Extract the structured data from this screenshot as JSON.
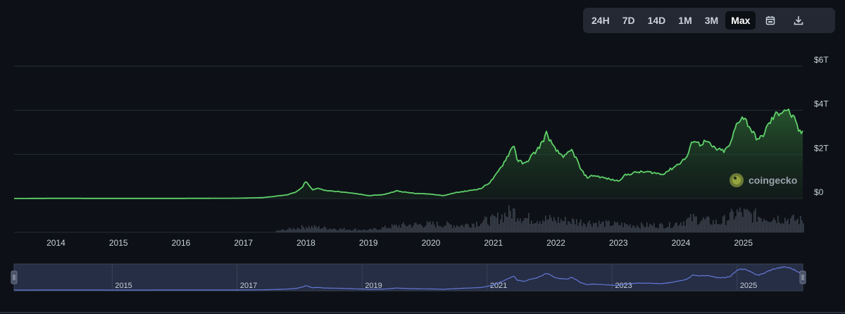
{
  "range_selector": {
    "buttons": [
      "24H",
      "7D",
      "14D",
      "1M",
      "3M",
      "Max"
    ],
    "active": "Max",
    "calendar_icon": "calendar-icon",
    "download_icon": "download-icon"
  },
  "watermark": {
    "text": "coingecko",
    "icon": "gecko-logo-icon"
  },
  "colors": {
    "background": "#0d1117",
    "line": "#5fd16a",
    "volume": "#3a404b",
    "navigator_fill": "#262e45",
    "navigator_line": "#6378d8"
  },
  "chart_data": {
    "type": "area",
    "y_tick_labels": [
      "$0",
      "$2T",
      "$4T",
      "$6T"
    ],
    "y_ticks": [
      0,
      2,
      4,
      6
    ],
    "ylim": [
      -1.5,
      6.2
    ],
    "y_unit": "trillion USD",
    "x_tick_labels": [
      "2014",
      "2015",
      "2016",
      "2017",
      "2018",
      "2019",
      "2020",
      "2021",
      "2022",
      "2023",
      "2024",
      "2025"
    ],
    "xlim": [
      2013.33,
      2025.95
    ],
    "grid": true,
    "series": [
      {
        "values": [
          [
            2013.33,
            0.002
          ],
          [
            2014.0,
            0.01
          ],
          [
            2015.0,
            0.005
          ],
          [
            2016.0,
            0.007
          ],
          [
            2016.9,
            0.015
          ],
          [
            2017.3,
            0.04
          ],
          [
            2017.5,
            0.1
          ],
          [
            2017.7,
            0.17
          ],
          [
            2017.85,
            0.3
          ],
          [
            2017.95,
            0.55
          ],
          [
            2018.0,
            0.8
          ],
          [
            2018.05,
            0.62
          ],
          [
            2018.1,
            0.4
          ],
          [
            2018.2,
            0.47
          ],
          [
            2018.3,
            0.36
          ],
          [
            2018.45,
            0.33
          ],
          [
            2018.6,
            0.3
          ],
          [
            2018.85,
            0.2
          ],
          [
            2019.0,
            0.13
          ],
          [
            2019.25,
            0.18
          ],
          [
            2019.45,
            0.35
          ],
          [
            2019.55,
            0.3
          ],
          [
            2019.75,
            0.24
          ],
          [
            2020.0,
            0.2
          ],
          [
            2020.2,
            0.13
          ],
          [
            2020.4,
            0.27
          ],
          [
            2020.6,
            0.35
          ],
          [
            2020.8,
            0.45
          ],
          [
            2020.95,
            0.75
          ],
          [
            2021.05,
            1.1
          ],
          [
            2021.15,
            1.55
          ],
          [
            2021.25,
            2.05
          ],
          [
            2021.33,
            2.45
          ],
          [
            2021.38,
            1.75
          ],
          [
            2021.5,
            1.55
          ],
          [
            2021.6,
            1.9
          ],
          [
            2021.7,
            2.2
          ],
          [
            2021.78,
            2.55
          ],
          [
            2021.85,
            2.95
          ],
          [
            2021.9,
            2.7
          ],
          [
            2021.95,
            2.35
          ],
          [
            2022.05,
            2.05
          ],
          [
            2022.15,
            1.9
          ],
          [
            2022.25,
            2.2
          ],
          [
            2022.33,
            1.8
          ],
          [
            2022.4,
            1.3
          ],
          [
            2022.5,
            0.95
          ],
          [
            2022.6,
            1.05
          ],
          [
            2022.75,
            0.95
          ],
          [
            2022.9,
            0.85
          ],
          [
            2023.0,
            0.8
          ],
          [
            2023.1,
            1.05
          ],
          [
            2023.3,
            1.2
          ],
          [
            2023.5,
            1.2
          ],
          [
            2023.7,
            1.1
          ],
          [
            2023.85,
            1.35
          ],
          [
            2024.0,
            1.65
          ],
          [
            2024.1,
            1.9
          ],
          [
            2024.2,
            2.7
          ],
          [
            2024.3,
            2.45
          ],
          [
            2024.4,
            2.6
          ],
          [
            2024.5,
            2.35
          ],
          [
            2024.6,
            2.2
          ],
          [
            2024.7,
            2.15
          ],
          [
            2024.8,
            2.5
          ],
          [
            2024.88,
            3.3
          ],
          [
            2024.95,
            3.65
          ],
          [
            2025.0,
            3.7
          ],
          [
            2025.08,
            3.35
          ],
          [
            2025.18,
            2.85
          ],
          [
            2025.25,
            2.65
          ],
          [
            2025.32,
            2.9
          ],
          [
            2025.4,
            3.35
          ],
          [
            2025.5,
            3.75
          ],
          [
            2025.6,
            3.95
          ],
          [
            2025.68,
            4.05
          ],
          [
            2025.75,
            3.85
          ],
          [
            2025.82,
            3.55
          ],
          [
            2025.88,
            3.1
          ],
          [
            2025.95,
            2.95
          ]
        ]
      }
    ],
    "volume": {
      "note": "Trading volume bars shown below the price line; relative heights",
      "values": [
        [
          2017.5,
          0.05
        ],
        [
          2018.0,
          0.25
        ],
        [
          2018.5,
          0.15
        ],
        [
          2019.0,
          0.1
        ],
        [
          2019.5,
          0.3
        ],
        [
          2020.0,
          0.35
        ],
        [
          2020.5,
          0.3
        ],
        [
          2021.0,
          0.55
        ],
        [
          2021.3,
          0.9
        ],
        [
          2021.5,
          0.6
        ],
        [
          2021.9,
          0.55
        ],
        [
          2022.4,
          0.45
        ],
        [
          2022.9,
          0.35
        ],
        [
          2023.3,
          0.3
        ],
        [
          2023.8,
          0.3
        ],
        [
          2024.2,
          0.6
        ],
        [
          2024.6,
          0.4
        ],
        [
          2024.9,
          0.85
        ],
        [
          2025.2,
          0.7
        ],
        [
          2025.6,
          0.6
        ],
        [
          2025.95,
          0.5
        ]
      ]
    },
    "navigator": {
      "x_tick_labels": [
        "2015",
        "2017",
        "2019",
        "2021",
        "2023",
        "2025"
      ],
      "selected_range": [
        "2013.33",
        "2025.95"
      ]
    }
  }
}
